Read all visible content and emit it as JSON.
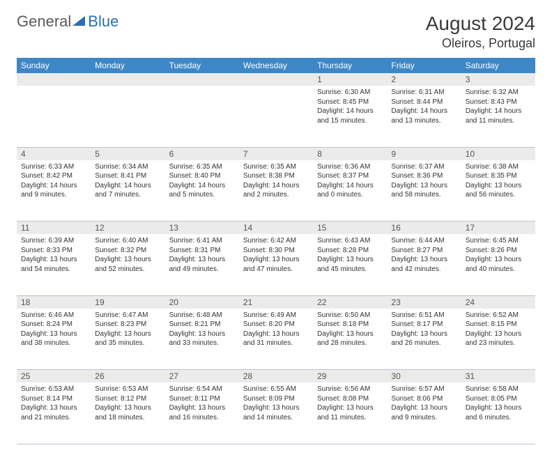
{
  "logo": {
    "part1": "General",
    "part2": "Blue"
  },
  "header": {
    "month": "August 2024",
    "location": "Oleiros, Portugal"
  },
  "colors": {
    "header_bg": "#3d87c7",
    "header_fg": "#ffffff",
    "daynum_bg": "#ebebeb",
    "border": "#b8c4d0",
    "text": "#333333",
    "logo_blue": "#2a6fb5",
    "logo_gray": "#5a5a5a"
  },
  "weekdays": [
    "Sunday",
    "Monday",
    "Tuesday",
    "Wednesday",
    "Thursday",
    "Friday",
    "Saturday"
  ],
  "weeks": [
    [
      null,
      null,
      null,
      null,
      {
        "n": "1",
        "sr": "Sunrise: 6:30 AM",
        "ss": "Sunset: 8:45 PM",
        "dl": "Daylight: 14 hours and 15 minutes."
      },
      {
        "n": "2",
        "sr": "Sunrise: 6:31 AM",
        "ss": "Sunset: 8:44 PM",
        "dl": "Daylight: 14 hours and 13 minutes."
      },
      {
        "n": "3",
        "sr": "Sunrise: 6:32 AM",
        "ss": "Sunset: 8:43 PM",
        "dl": "Daylight: 14 hours and 11 minutes."
      }
    ],
    [
      {
        "n": "4",
        "sr": "Sunrise: 6:33 AM",
        "ss": "Sunset: 8:42 PM",
        "dl": "Daylight: 14 hours and 9 minutes."
      },
      {
        "n": "5",
        "sr": "Sunrise: 6:34 AM",
        "ss": "Sunset: 8:41 PM",
        "dl": "Daylight: 14 hours and 7 minutes."
      },
      {
        "n": "6",
        "sr": "Sunrise: 6:35 AM",
        "ss": "Sunset: 8:40 PM",
        "dl": "Daylight: 14 hours and 5 minutes."
      },
      {
        "n": "7",
        "sr": "Sunrise: 6:35 AM",
        "ss": "Sunset: 8:38 PM",
        "dl": "Daylight: 14 hours and 2 minutes."
      },
      {
        "n": "8",
        "sr": "Sunrise: 6:36 AM",
        "ss": "Sunset: 8:37 PM",
        "dl": "Daylight: 14 hours and 0 minutes."
      },
      {
        "n": "9",
        "sr": "Sunrise: 6:37 AM",
        "ss": "Sunset: 8:36 PM",
        "dl": "Daylight: 13 hours and 58 minutes."
      },
      {
        "n": "10",
        "sr": "Sunrise: 6:38 AM",
        "ss": "Sunset: 8:35 PM",
        "dl": "Daylight: 13 hours and 56 minutes."
      }
    ],
    [
      {
        "n": "11",
        "sr": "Sunrise: 6:39 AM",
        "ss": "Sunset: 8:33 PM",
        "dl": "Daylight: 13 hours and 54 minutes."
      },
      {
        "n": "12",
        "sr": "Sunrise: 6:40 AM",
        "ss": "Sunset: 8:32 PM",
        "dl": "Daylight: 13 hours and 52 minutes."
      },
      {
        "n": "13",
        "sr": "Sunrise: 6:41 AM",
        "ss": "Sunset: 8:31 PM",
        "dl": "Daylight: 13 hours and 49 minutes."
      },
      {
        "n": "14",
        "sr": "Sunrise: 6:42 AM",
        "ss": "Sunset: 8:30 PM",
        "dl": "Daylight: 13 hours and 47 minutes."
      },
      {
        "n": "15",
        "sr": "Sunrise: 6:43 AM",
        "ss": "Sunset: 8:28 PM",
        "dl": "Daylight: 13 hours and 45 minutes."
      },
      {
        "n": "16",
        "sr": "Sunrise: 6:44 AM",
        "ss": "Sunset: 8:27 PM",
        "dl": "Daylight: 13 hours and 42 minutes."
      },
      {
        "n": "17",
        "sr": "Sunrise: 6:45 AM",
        "ss": "Sunset: 8:26 PM",
        "dl": "Daylight: 13 hours and 40 minutes."
      }
    ],
    [
      {
        "n": "18",
        "sr": "Sunrise: 6:46 AM",
        "ss": "Sunset: 8:24 PM",
        "dl": "Daylight: 13 hours and 38 minutes."
      },
      {
        "n": "19",
        "sr": "Sunrise: 6:47 AM",
        "ss": "Sunset: 8:23 PM",
        "dl": "Daylight: 13 hours and 35 minutes."
      },
      {
        "n": "20",
        "sr": "Sunrise: 6:48 AM",
        "ss": "Sunset: 8:21 PM",
        "dl": "Daylight: 13 hours and 33 minutes."
      },
      {
        "n": "21",
        "sr": "Sunrise: 6:49 AM",
        "ss": "Sunset: 8:20 PM",
        "dl": "Daylight: 13 hours and 31 minutes."
      },
      {
        "n": "22",
        "sr": "Sunrise: 6:50 AM",
        "ss": "Sunset: 8:18 PM",
        "dl": "Daylight: 13 hours and 28 minutes."
      },
      {
        "n": "23",
        "sr": "Sunrise: 6:51 AM",
        "ss": "Sunset: 8:17 PM",
        "dl": "Daylight: 13 hours and 26 minutes."
      },
      {
        "n": "24",
        "sr": "Sunrise: 6:52 AM",
        "ss": "Sunset: 8:15 PM",
        "dl": "Daylight: 13 hours and 23 minutes."
      }
    ],
    [
      {
        "n": "25",
        "sr": "Sunrise: 6:53 AM",
        "ss": "Sunset: 8:14 PM",
        "dl": "Daylight: 13 hours and 21 minutes."
      },
      {
        "n": "26",
        "sr": "Sunrise: 6:53 AM",
        "ss": "Sunset: 8:12 PM",
        "dl": "Daylight: 13 hours and 18 minutes."
      },
      {
        "n": "27",
        "sr": "Sunrise: 6:54 AM",
        "ss": "Sunset: 8:11 PM",
        "dl": "Daylight: 13 hours and 16 minutes."
      },
      {
        "n": "28",
        "sr": "Sunrise: 6:55 AM",
        "ss": "Sunset: 8:09 PM",
        "dl": "Daylight: 13 hours and 14 minutes."
      },
      {
        "n": "29",
        "sr": "Sunrise: 6:56 AM",
        "ss": "Sunset: 8:08 PM",
        "dl": "Daylight: 13 hours and 11 minutes."
      },
      {
        "n": "30",
        "sr": "Sunrise: 6:57 AM",
        "ss": "Sunset: 8:06 PM",
        "dl": "Daylight: 13 hours and 9 minutes."
      },
      {
        "n": "31",
        "sr": "Sunrise: 6:58 AM",
        "ss": "Sunset: 8:05 PM",
        "dl": "Daylight: 13 hours and 6 minutes."
      }
    ]
  ]
}
